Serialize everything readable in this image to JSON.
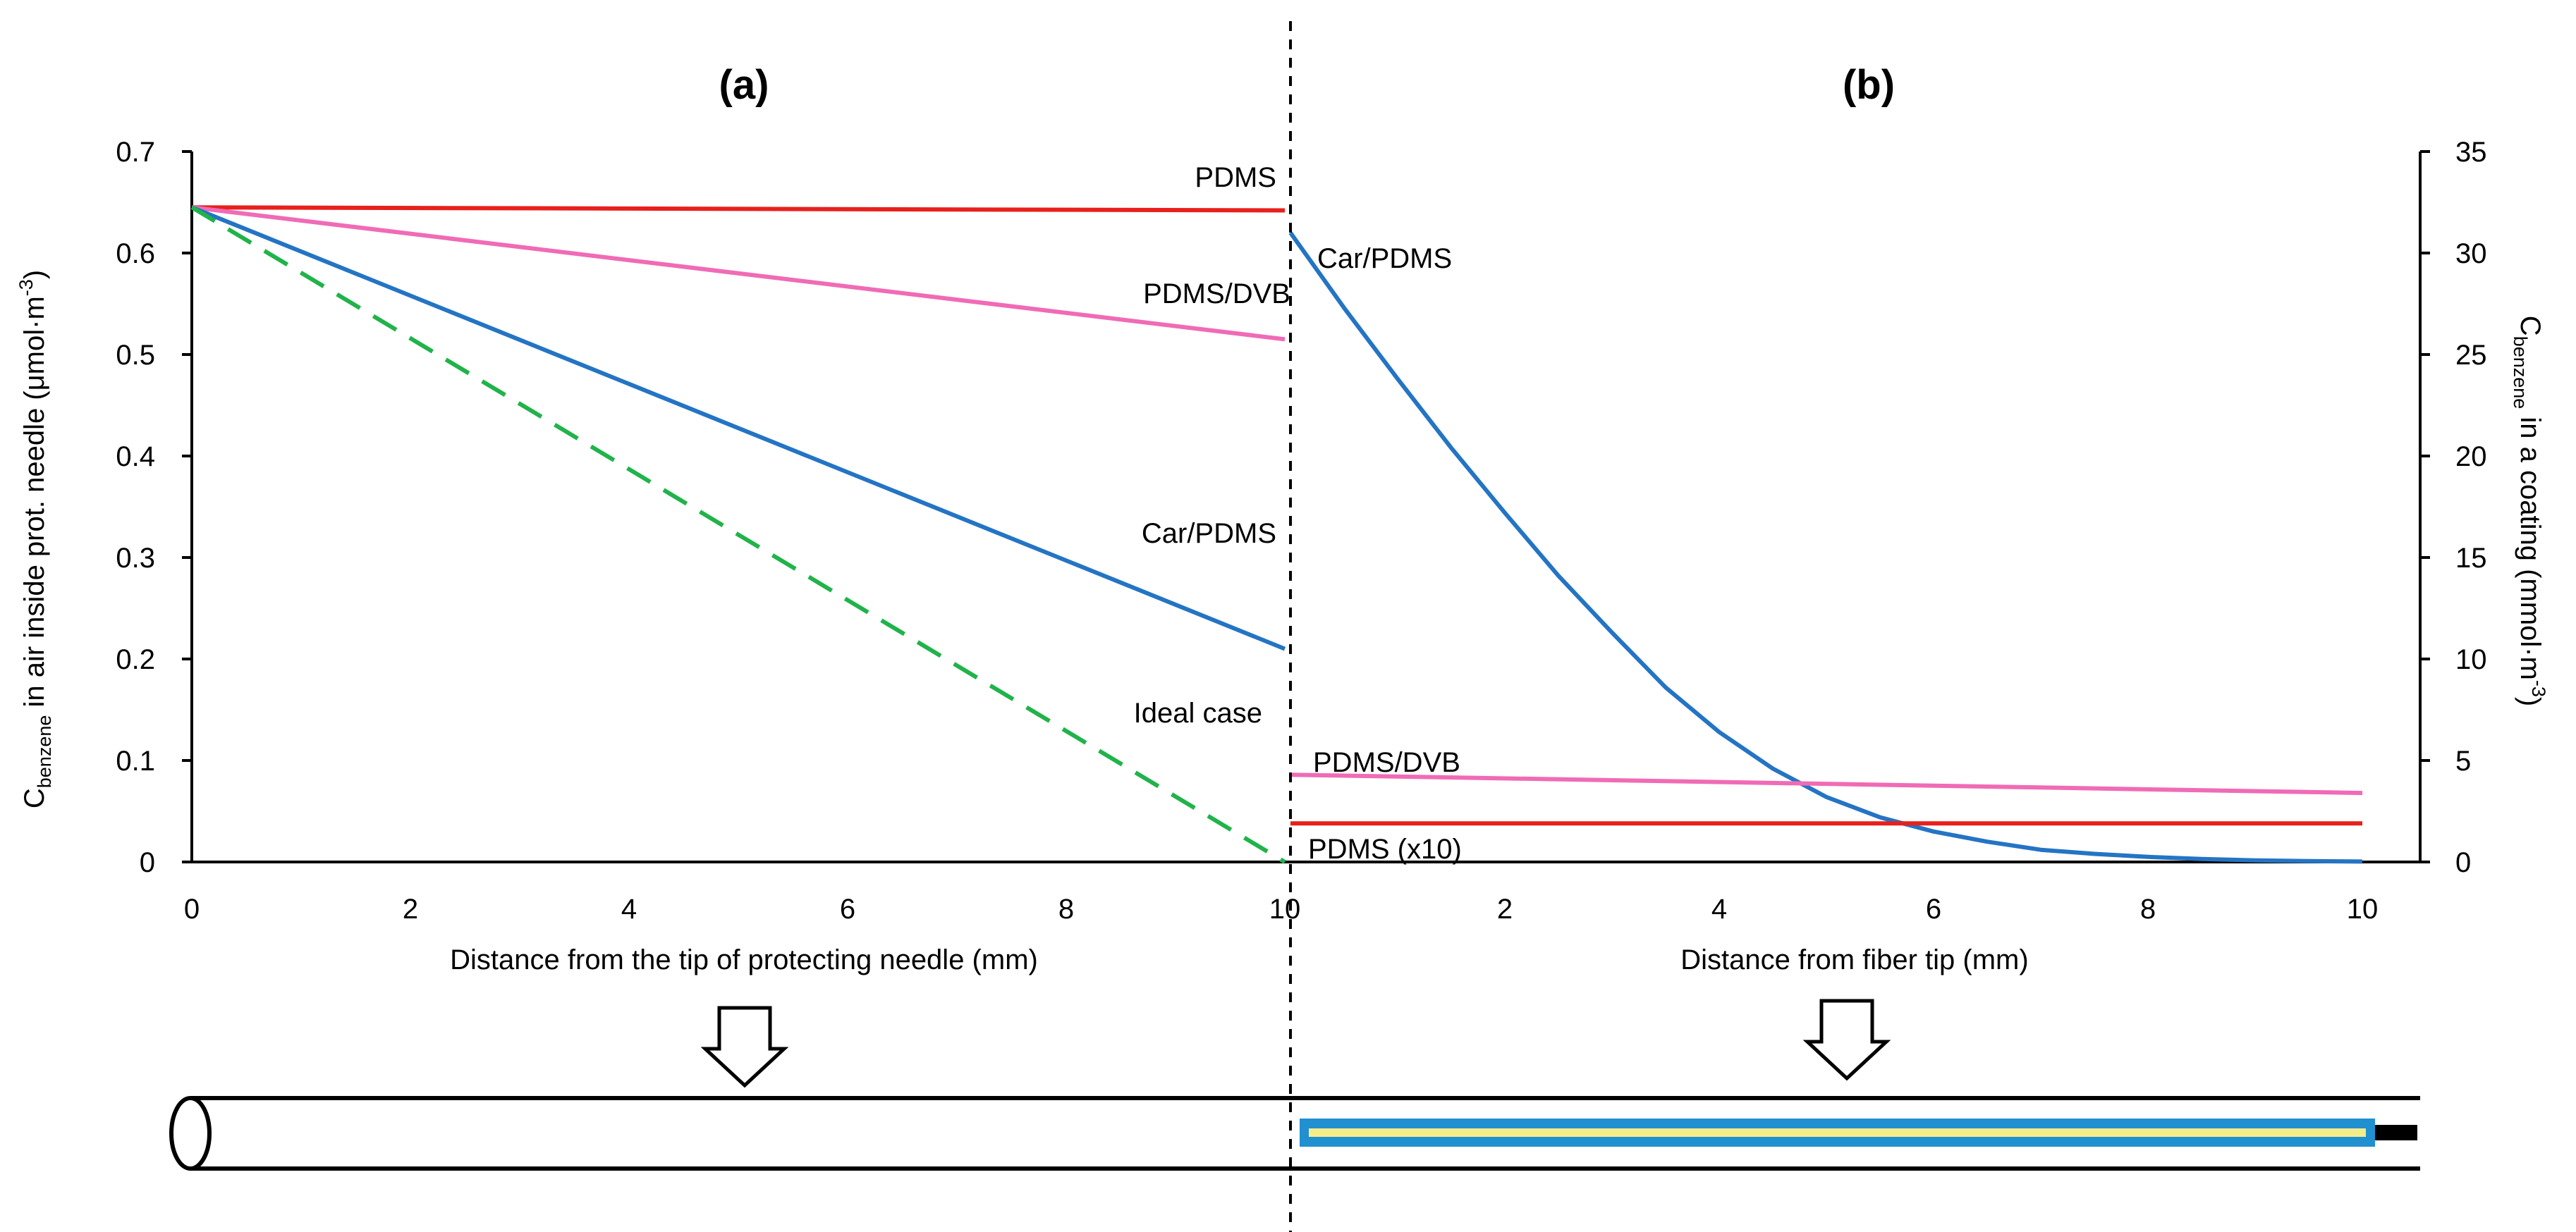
{
  "chart_data": [
    {
      "panel": "(a)",
      "type": "line",
      "title": "(a)",
      "xlabel": "Distance from the tip of protecting needle (mm)",
      "ylabel_main": "C",
      "ylabel_sub": "benzene",
      "ylabel_rest": " in air inside prot. needle (μmol·m",
      "ylabel_sup": "-3",
      "ylabel_end": ")",
      "xlim": [
        0,
        10
      ],
      "ylim": [
        0,
        0.7
      ],
      "xticks": [
        0,
        2,
        4,
        6,
        8,
        10
      ],
      "yticks": [
        0,
        0.1,
        0.2,
        0.3,
        0.4,
        0.5,
        0.6,
        0.7
      ],
      "series": [
        {
          "name": "PDMS",
          "color": "#e8201c",
          "dash": "solid",
          "x": [
            0,
            10
          ],
          "y": [
            0.645,
            0.642
          ]
        },
        {
          "name": "PDMS/DVB",
          "color": "#f06bb6",
          "dash": "solid",
          "x": [
            0,
            10
          ],
          "y": [
            0.645,
            0.515
          ]
        },
        {
          "name": "Car/PDMS",
          "color": "#2474c4",
          "dash": "solid",
          "x": [
            0,
            10
          ],
          "y": [
            0.645,
            0.21
          ]
        },
        {
          "name": "Ideal case",
          "color": "#20b34a",
          "dash": "dashed",
          "x": [
            0,
            10
          ],
          "y": [
            0.645,
            0
          ]
        }
      ],
      "annotations": [
        "PDMS",
        "PDMS/DVB",
        "Car/PDMS",
        "Ideal case"
      ]
    },
    {
      "panel": "(b)",
      "type": "line",
      "title": "(b)",
      "xlabel": "Distance from fiber tip (mm)",
      "ylabel_main": "C",
      "ylabel_sub": "benzene",
      "ylabel_rest": " in a coating (mmol·m",
      "ylabel_sup": "-3",
      "ylabel_end": ")",
      "xlim": [
        0,
        10
      ],
      "ylim": [
        0,
        35
      ],
      "xticks": [
        2,
        4,
        6,
        8,
        10
      ],
      "yticks": [
        0,
        5,
        10,
        15,
        20,
        25,
        30,
        35
      ],
      "series": [
        {
          "name": "Car/PDMS",
          "color": "#2474c4",
          "dash": "solid",
          "x": [
            0,
            0.5,
            1,
            1.5,
            2,
            2.5,
            3,
            3.5,
            4,
            4.5,
            5,
            5.5,
            6,
            6.5,
            7,
            7.5,
            8,
            8.5,
            9,
            9.5,
            10
          ],
          "y": [
            31,
            27.3,
            23.8,
            20.4,
            17.2,
            14.1,
            11.3,
            8.6,
            6.4,
            4.6,
            3.2,
            2.2,
            1.5,
            1.0,
            0.6,
            0.4,
            0.25,
            0.15,
            0.08,
            0.04,
            0.02
          ]
        },
        {
          "name": "PDMS/DVB",
          "color": "#f06bb6",
          "dash": "solid",
          "x": [
            0,
            10
          ],
          "y": [
            4.3,
            3.4
          ]
        },
        {
          "name": "PDMS (x10)",
          "color": "#e8201c",
          "dash": "solid",
          "x": [
            0,
            10
          ],
          "y": [
            1.9,
            1.9
          ]
        }
      ],
      "annotations": [
        "Car/PDMS",
        "PDMS/DVB",
        "PDMS (x10)"
      ]
    }
  ]
}
